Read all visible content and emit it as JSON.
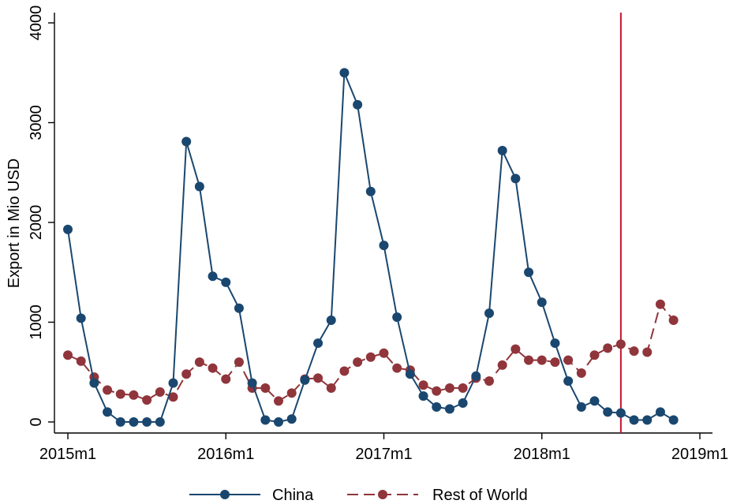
{
  "chart_data": {
    "type": "line",
    "title": "",
    "xlabel": "",
    "ylabel": "Export in Mio USD",
    "ylim": [
      0,
      4000
    ],
    "xlim": [
      "2015m1",
      "2019m1"
    ],
    "y_ticks": [
      0,
      1000,
      2000,
      3000,
      4000
    ],
    "x_ticks": [
      "2015m1",
      "2016m1",
      "2017m1",
      "2018m1",
      "2019m1"
    ],
    "grid": false,
    "legend_position": "bottom",
    "vline": {
      "x": "2018m7",
      "color": "#c4122f"
    },
    "x": [
      "2015m1",
      "2015m2",
      "2015m3",
      "2015m4",
      "2015m5",
      "2015m6",
      "2015m7",
      "2015m8",
      "2015m9",
      "2015m10",
      "2015m11",
      "2015m12",
      "2016m1",
      "2016m2",
      "2016m3",
      "2016m4",
      "2016m5",
      "2016m6",
      "2016m7",
      "2016m8",
      "2016m9",
      "2016m10",
      "2016m11",
      "2016m12",
      "2017m1",
      "2017m2",
      "2017m3",
      "2017m4",
      "2017m5",
      "2017m6",
      "2017m7",
      "2017m8",
      "2017m9",
      "2017m10",
      "2017m11",
      "2017m12",
      "2018m1",
      "2018m2",
      "2018m3",
      "2018m4",
      "2018m5",
      "2018m6",
      "2018m7",
      "2018m8",
      "2018m9",
      "2018m10",
      "2018m11"
    ],
    "series": [
      {
        "name": "China",
        "color": "#1a476f",
        "dash": "solid",
        "values": [
          1930,
          1040,
          390,
          100,
          0,
          0,
          0,
          0,
          390,
          2810,
          2360,
          1460,
          1400,
          1140,
          390,
          20,
          0,
          30,
          420,
          790,
          1020,
          3500,
          3180,
          2310,
          1770,
          1050,
          480,
          260,
          150,
          130,
          190,
          460,
          1090,
          2720,
          2440,
          1500,
          1200,
          790,
          410,
          150,
          210,
          100,
          90,
          20,
          20,
          100,
          20
        ]
      },
      {
        "name": "Rest of World",
        "color": "#90353b",
        "dash": "dashed",
        "values": [
          670,
          610,
          450,
          320,
          280,
          270,
          220,
          300,
          250,
          480,
          600,
          540,
          430,
          600,
          340,
          340,
          210,
          290,
          430,
          440,
          340,
          510,
          600,
          650,
          690,
          540,
          520,
          370,
          310,
          340,
          340,
          440,
          410,
          570,
          730,
          620,
          620,
          600,
          620,
          490,
          670,
          740,
          780,
          710,
          700,
          1180,
          1020
        ]
      }
    ]
  }
}
